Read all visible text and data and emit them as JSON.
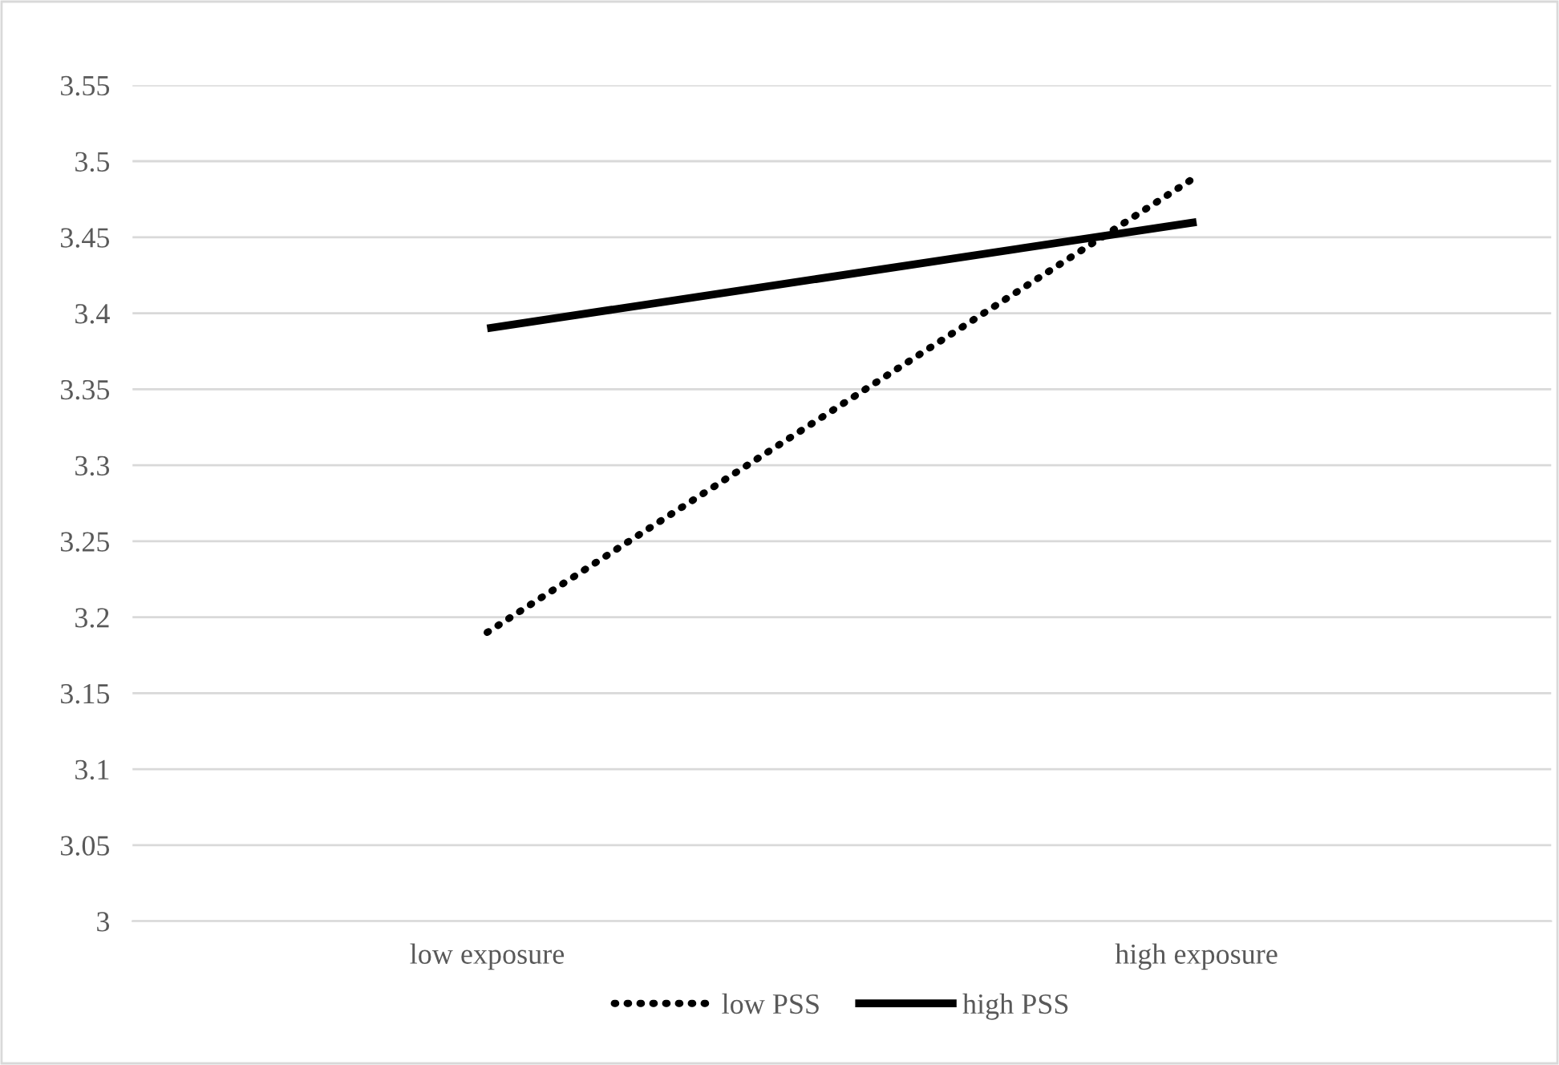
{
  "chart_data": {
    "type": "line",
    "categories": [
      "low exposure",
      "high exposure"
    ],
    "series": [
      {
        "name": "low PSS",
        "color": "#000000",
        "line_style": "dotted",
        "values": [
          3.19,
          3.49
        ]
      },
      {
        "name": "high PSS",
        "color": "#000000",
        "line_style": "solid",
        "values": [
          3.39,
          3.46
        ]
      }
    ],
    "ylim": [
      3,
      3.55
    ],
    "yticks": [
      3,
      3.05,
      3.1,
      3.15,
      3.2,
      3.25,
      3.3,
      3.35,
      3.4,
      3.45,
      3.5,
      3.55
    ],
    "grid": "y",
    "legend": "bottom",
    "marker": "none"
  }
}
